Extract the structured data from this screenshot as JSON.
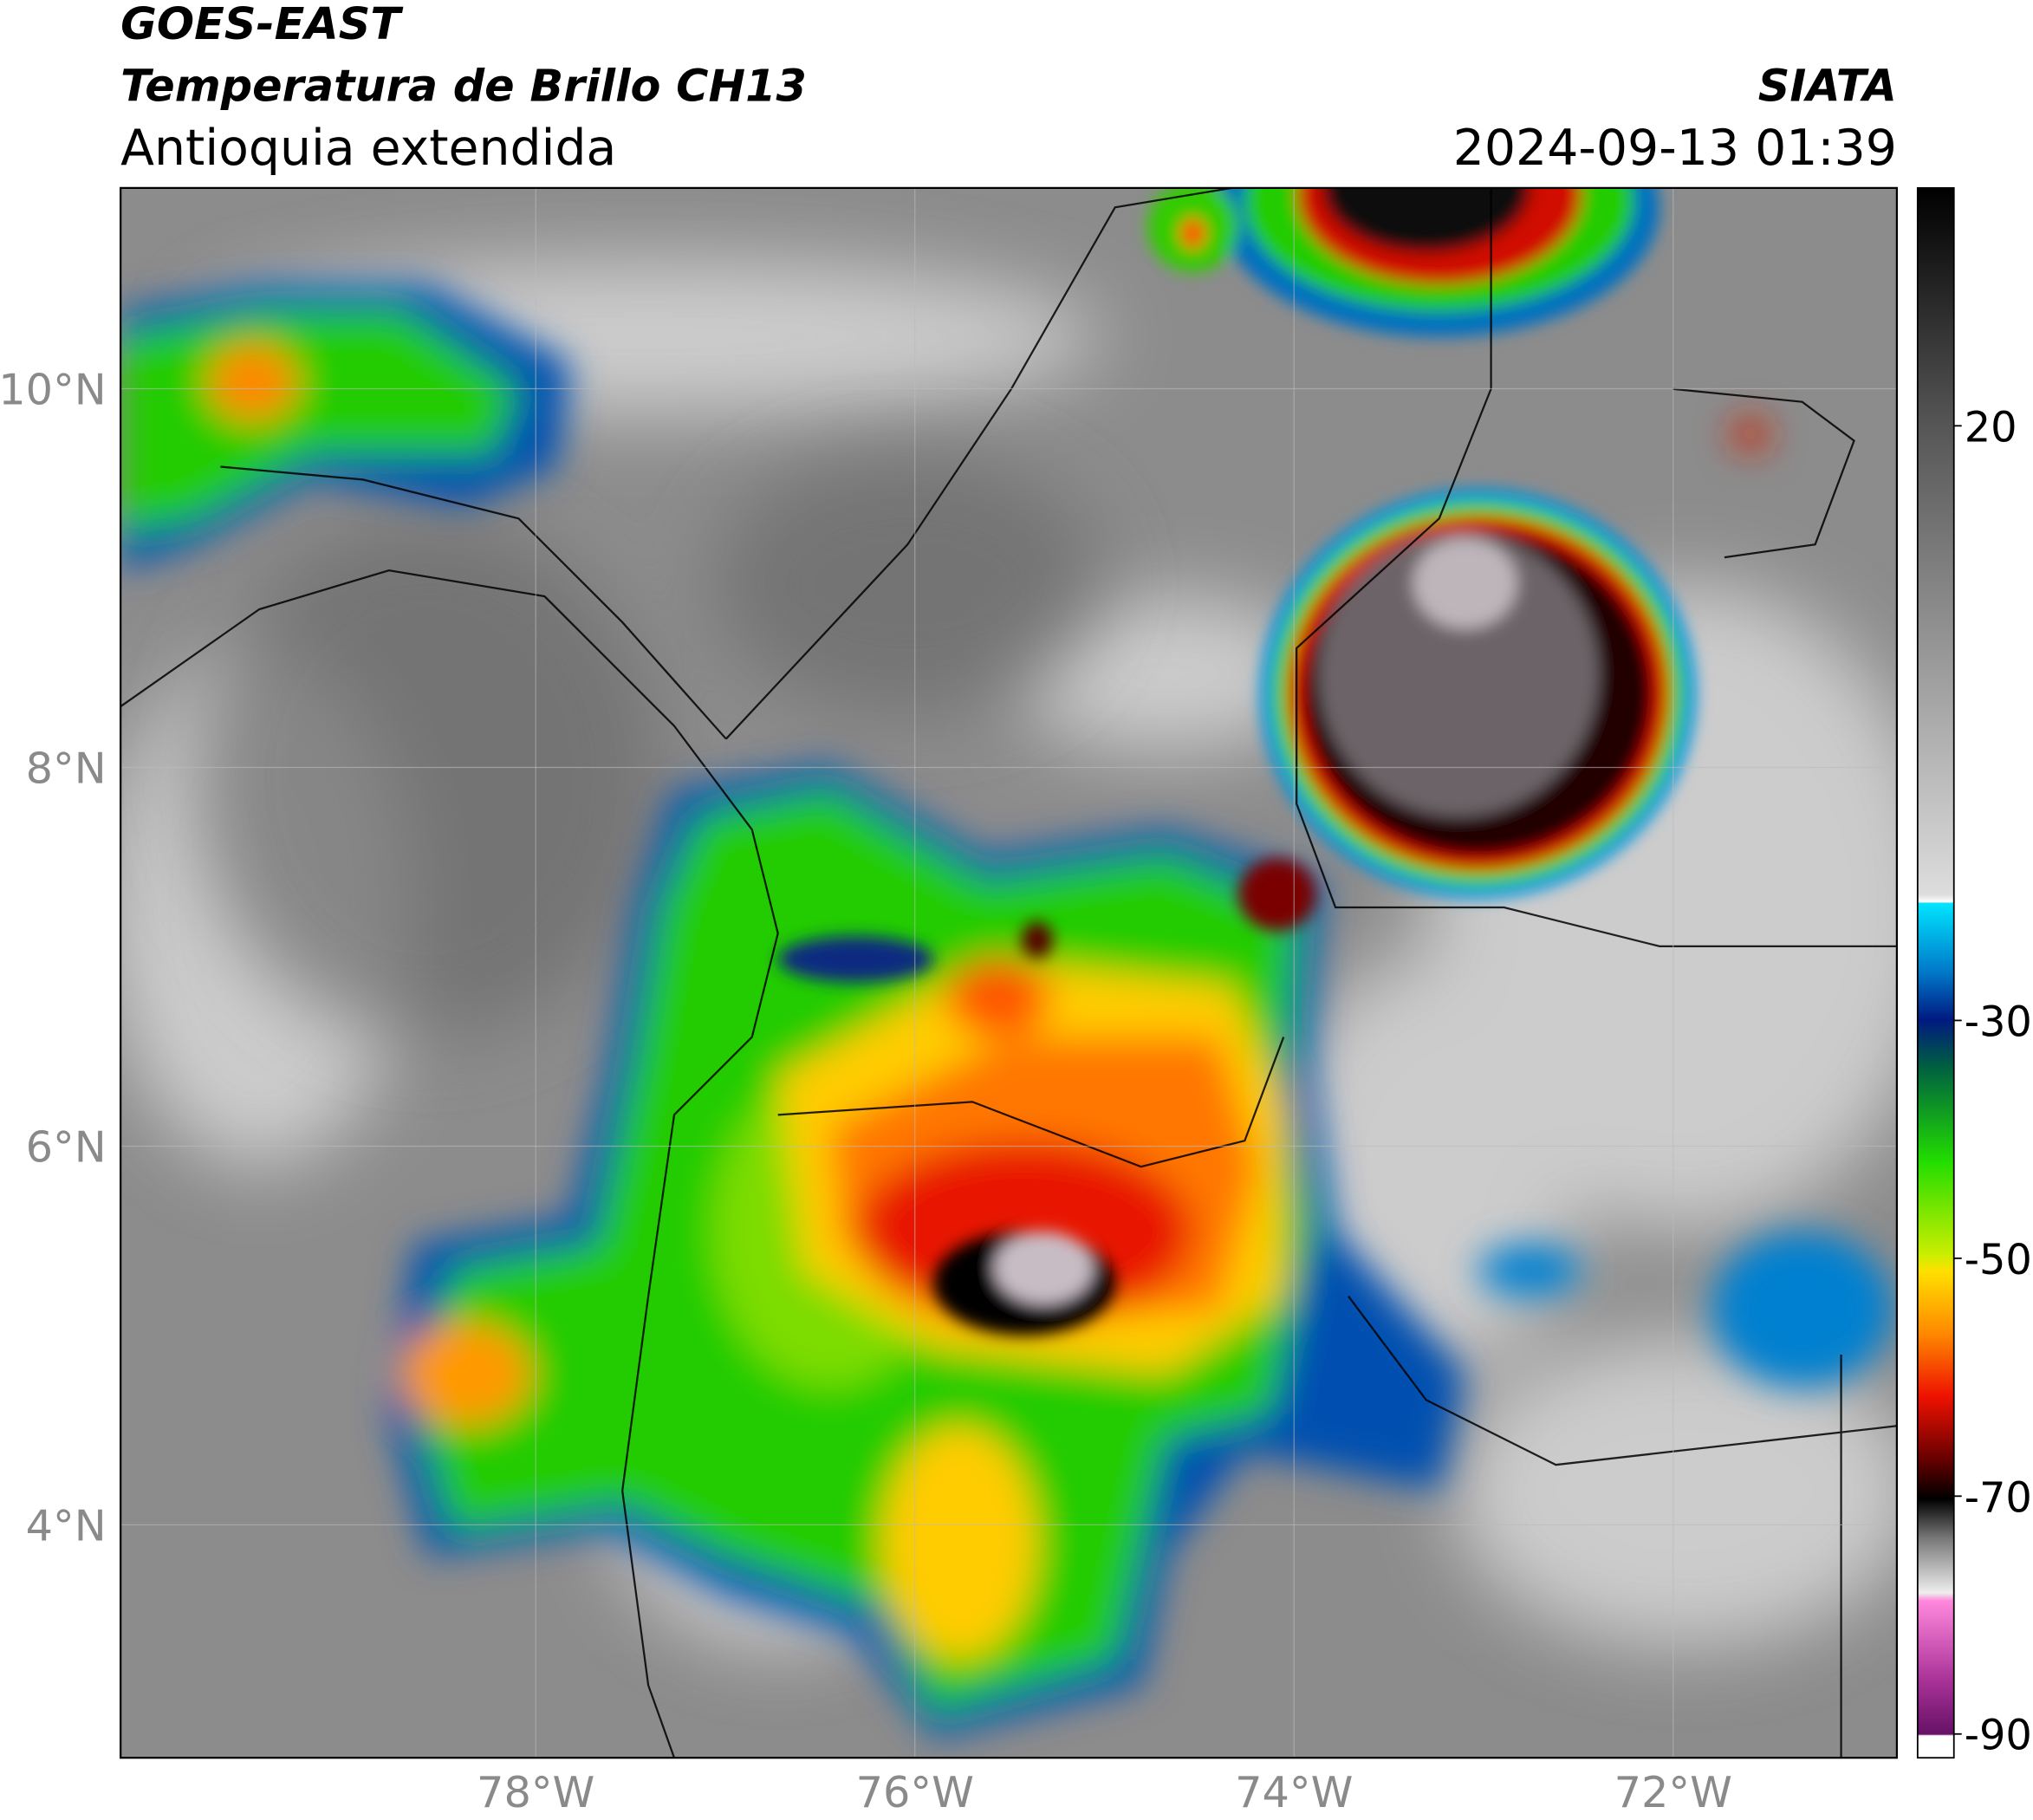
{
  "header": {
    "satellite": "GOES-EAST",
    "product": "Temperatura de Brillo CH13",
    "region": "Antioquia extendida",
    "source": "SIATA",
    "datetime": "2024-09-13 01:39"
  },
  "map": {
    "xlim": [
      -80.19,
      -70.82
    ],
    "ylim": [
      2.77,
      11.06
    ],
    "xticks": [
      {
        "value": -78,
        "label": "78°W"
      },
      {
        "value": -76,
        "label": "76°W"
      },
      {
        "value": -74,
        "label": "74°W"
      },
      {
        "value": -72,
        "label": "72°W"
      }
    ],
    "yticks": [
      {
        "value": 10,
        "label": "10°N"
      },
      {
        "value": 8,
        "label": "8°N"
      },
      {
        "value": 6,
        "label": "6°N"
      },
      {
        "value": 4,
        "label": "4°N"
      }
    ]
  },
  "colorbar": {
    "lim": [
      -92,
      40
    ],
    "ticks": [
      20,
      -30,
      -50,
      -70,
      -90
    ]
  }
}
